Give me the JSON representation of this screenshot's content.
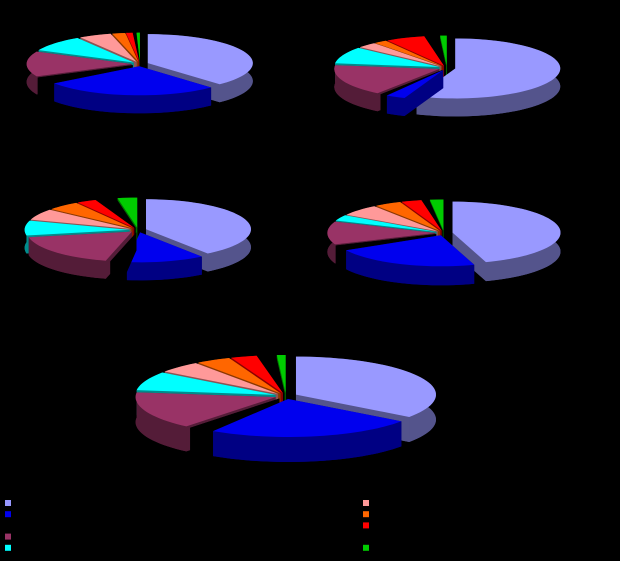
{
  "chart_data": [
    {
      "type": "pie",
      "values": [
        38,
        27,
        3,
        14,
        9,
        5,
        2,
        1,
        0.5,
        0.5
      ],
      "colors": [
        "#9999ff",
        "#0000ee",
        "#000000",
        "#993366",
        "#00ffff",
        "#ff9999",
        "#ff6600",
        "#ff0000",
        "#000000",
        "#00cc00"
      ]
    },
    {
      "type": "pie",
      "values": [
        56,
        3,
        1,
        17,
        9,
        3,
        2,
        6,
        2,
        1
      ],
      "colors": [
        "#9999ff",
        "#0000ee",
        "#000000",
        "#993366",
        "#00ffff",
        "#ff9999",
        "#ff6600",
        "#ff0000",
        "#000000",
        "#00cc00"
      ]
    },
    {
      "type": "pie",
      "values": [
        40,
        12,
        2,
        18,
        8,
        6,
        5,
        3,
        3,
        3
      ],
      "colors": [
        "#9999ff",
        "#0000ee",
        "#000000",
        "#993366",
        "#00ffff",
        "#ff9999",
        "#ff6600",
        "#ff0000",
        "#000000",
        "#00cc00"
      ]
    },
    {
      "type": "pie",
      "values": [
        45,
        22,
        2,
        12,
        3,
        6,
        4,
        3,
        1,
        2
      ],
      "colors": [
        "#9999ff",
        "#0000ee",
        "#000000",
        "#993366",
        "#00ffff",
        "#ff9999",
        "#ff6600",
        "#ff0000",
        "#000000",
        "#00cc00"
      ]
    },
    {
      "type": "pie",
      "values": [
        35,
        24,
        2,
        16,
        8,
        5,
        4,
        3,
        2,
        1
      ],
      "colors": [
        "#9999ff",
        "#0000ee",
        "#000000",
        "#993366",
        "#00ffff",
        "#ff9999",
        "#ff6600",
        "#ff0000",
        "#000000",
        "#00cc00"
      ]
    }
  ]
}
